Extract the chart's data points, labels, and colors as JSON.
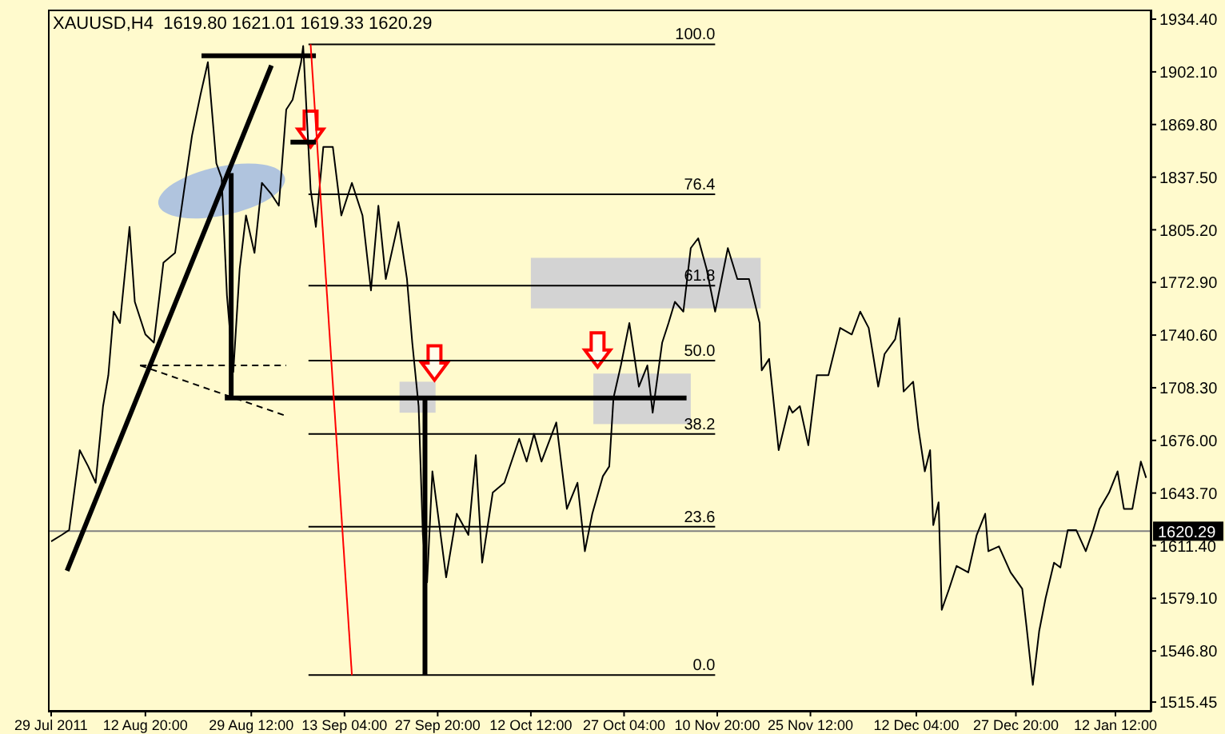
{
  "chart_data": {
    "type": "line",
    "title": "XAUUSD,H4  1619.80 1621.01 1619.33 1620.29",
    "xlim": [
      "2011-07-28T12:00",
      "2012-01-18T04:00"
    ],
    "xticks": [
      {
        "value": "2011-07-29T00:00",
        "label": "29 Jul 2011"
      },
      {
        "value": "2011-08-12T20:00",
        "label": "12 Aug 20:00"
      },
      {
        "value": "2011-08-29T12:00",
        "label": "29 Aug 12:00"
      },
      {
        "value": "2011-09-13T04:00",
        "label": "13 Sep 04:00"
      },
      {
        "value": "2011-09-27T20:00",
        "label": "27 Sep 20:00"
      },
      {
        "value": "2011-10-12T12:00",
        "label": "12 Oct 12:00"
      },
      {
        "value": "2011-10-27T04:00",
        "label": "27 Oct 04:00"
      },
      {
        "value": "2011-11-10T20:00",
        "label": "10 Nov 20:00"
      },
      {
        "value": "2011-11-25T12:00",
        "label": "25 Nov 12:00"
      },
      {
        "value": "2011-12-12T04:00",
        "label": "12 Dec 04:00"
      },
      {
        "value": "2011-12-27T20:00",
        "label": "27 Dec 20:00"
      },
      {
        "value": "2012-01-12T12:00",
        "label": "12 Jan 12:00"
      }
    ],
    "ylim": [
      1509.6,
      1940.3
    ],
    "yticks": [
      {
        "value": 1934.4,
        "label": "1934.40"
      },
      {
        "value": 1902.1,
        "label": "1902.10"
      },
      {
        "value": 1869.8,
        "label": "1869.80"
      },
      {
        "value": 1837.5,
        "label": "1837.50"
      },
      {
        "value": 1805.2,
        "label": "1805.20"
      },
      {
        "value": 1772.9,
        "label": "1772.90"
      },
      {
        "value": 1740.6,
        "label": "1740.60"
      },
      {
        "value": 1708.3,
        "label": "1708.30"
      },
      {
        "value": 1676,
        "label": "1676.00"
      },
      {
        "value": 1643.7,
        "label": "1643.70"
      },
      {
        "value": 1611.4,
        "label": "1611.40"
      },
      {
        "value": 1579.1,
        "label": "1579.10"
      },
      {
        "value": 1546.8,
        "label": "1546.80"
      },
      {
        "value": 1515.45,
        "label": "1515.45"
      }
    ],
    "ref_lines": [
      {
        "axis": "y",
        "value": 1620.29,
        "label": "1620.29",
        "color": "#808080"
      }
    ],
    "marker": "none",
    "series": [
      {
        "color": "#000000",
        "x": [
          "2011-07-29T00:00",
          "2011-07-30T16:00",
          "2011-07-31T20:00",
          "2011-08-02T12:00",
          "2011-08-03T20:00",
          "2011-08-05T00:00",
          "2011-08-06T04:00",
          "2011-08-07T00:00",
          "2011-08-07T20:00",
          "2011-08-08T20:00",
          "2011-08-10T08:00",
          "2011-08-11T04:00",
          "2011-08-12T20:00",
          "2011-08-14T04:00",
          "2011-08-15T16:00",
          "2011-08-17T12:00",
          "2011-08-18T20:00",
          "2011-08-20T04:00",
          "2011-08-21T12:00",
          "2011-08-22T16:00",
          "2011-08-24T00:00",
          "2011-08-24T20:00",
          "2011-08-25T16:00",
          "2011-08-26T16:00",
          "2011-08-27T16:00",
          "2011-08-28T16:00",
          "2011-08-30T00:00",
          "2011-08-31T04:00",
          "2011-09-01T16:00",
          "2011-09-02T20:00",
          "2011-09-04T00:00",
          "2011-09-05T00:00",
          "2011-09-06T08:00",
          "2011-09-06T16:00",
          "2011-09-07T20:00",
          "2011-09-08T16:00",
          "2011-09-09T20:00",
          "2011-09-11T08:00",
          "2011-09-12T16:00",
          "2011-09-14T08:00",
          "2011-09-16T00:00",
          "2011-09-17T08:00",
          "2011-09-18T12:00",
          "2011-09-19T16:00",
          "2011-09-21T16:00",
          "2011-09-23T00:00",
          "2011-09-23T20:00",
          "2011-09-24T20:00",
          "2011-09-25T12:00",
          "2011-09-26T04:00",
          "2011-09-27T00:00",
          "2011-09-29T04:00",
          "2011-09-30T20:00",
          "2011-10-02T16:00",
          "2011-10-03T20:00",
          "2011-10-04T20:00",
          "2011-10-06T12:00",
          "2011-10-08T08:00",
          "2011-10-10T16:00",
          "2011-10-11T20:00",
          "2011-10-13T00:00",
          "2011-10-14T04:00",
          "2011-10-16T12:00",
          "2011-10-18T04:00",
          "2011-10-19T20:00",
          "2011-10-21T00:00",
          "2011-10-22T04:00",
          "2011-10-23T20:00",
          "2011-10-24T20:00",
          "2011-10-25T12:00",
          "2011-10-26T16:00",
          "2011-10-28T00:00",
          "2011-10-29T12:00",
          "2011-10-30T20:00",
          "2011-10-31T16:00",
          "2011-11-02T04:00",
          "2011-11-03T04:00",
          "2011-11-04T04:00",
          "2011-11-05T12:00",
          "2011-11-06T16:00",
          "2011-11-07T20:00",
          "2011-11-09T04:00",
          "2011-11-10T12:00",
          "2011-11-12T12:00",
          "2011-11-14T00:00",
          "2011-11-15T20:00",
          "2011-11-17T12:00",
          "2011-11-17T20:00",
          "2011-11-19T00:00",
          "2011-11-20T12:00",
          "2011-11-22T04:00",
          "2011-11-22T16:00",
          "2011-11-23T20:00",
          "2011-11-25T04:00",
          "2011-11-26T12:00",
          "2011-11-28T08:00",
          "2011-11-30T04:00",
          "2011-12-02T00:00",
          "2011-12-03T08:00",
          "2011-12-04T16:00",
          "2011-12-06T04:00",
          "2011-12-07T04:00",
          "2011-12-08T20:00",
          "2011-12-09T12:00",
          "2011-12-10T04:00",
          "2011-12-11T16:00",
          "2011-12-12T12:00",
          "2011-12-13T12:00",
          "2011-12-14T08:00",
          "2011-12-14T20:00",
          "2011-12-15T16:00",
          "2011-12-16T04:00",
          "2011-12-17T08:00",
          "2011-12-18T12:00",
          "2011-12-20T08:00",
          "2011-12-21T16:00",
          "2011-12-23T00:00",
          "2011-12-23T12:00",
          "2011-12-25T04:00",
          "2011-12-27T00:00",
          "2011-12-28T20:00",
          "2011-12-29T12:00",
          "2011-12-30T12:00",
          "2011-12-31T12:00",
          "2012-01-01T12:00",
          "2012-01-02T20:00",
          "2012-01-03T20:00",
          "2012-01-05T00:00",
          "2012-01-06T08:00",
          "2012-01-07T20:00",
          "2012-01-09T00:00",
          "2012-01-10T00:00",
          "2012-01-11T12:00",
          "2012-01-12T20:00",
          "2012-01-13T20:00",
          "2012-01-15T04:00",
          "2012-01-16T12:00",
          "2012-01-17T08:00"
        ],
        "values": [
          1614,
          1618,
          1621,
          1670,
          1660,
          1650,
          1697,
          1716,
          1755,
          1748,
          1807,
          1761,
          1741,
          1736,
          1785,
          1791,
          1827,
          1863,
          1888,
          1908,
          1846,
          1837,
          1765,
          1718,
          1781,
          1814,
          1791,
          1834,
          1827,
          1820,
          1879,
          1885,
          1908,
          1918,
          1830,
          1807,
          1856,
          1856,
          1814,
          1834,
          1814,
          1768,
          1820,
          1775,
          1810,
          1775,
          1736,
          1697,
          1618,
          1589,
          1657,
          1592,
          1631,
          1618,
          1667,
          1601,
          1644,
          1650,
          1677,
          1663,
          1680,
          1663,
          1687,
          1634,
          1650,
          1608,
          1631,
          1654,
          1660,
          1702,
          1722,
          1748,
          1709,
          1722,
          1693,
          1736,
          1748,
          1761,
          1755,
          1794,
          1800,
          1781,
          1755,
          1794,
          1775,
          1775,
          1748,
          1719,
          1726,
          1670,
          1697,
          1693,
          1697,
          1673,
          1716,
          1716,
          1745,
          1741,
          1755,
          1745,
          1709,
          1729,
          1738,
          1751,
          1706,
          1712,
          1683,
          1657,
          1670,
          1624,
          1638,
          1572,
          1585,
          1599,
          1595,
          1618,
          1631,
          1608,
          1611,
          1595,
          1585,
          1562,
          1526,
          1559,
          1579,
          1601,
          1598,
          1621,
          1621,
          1608,
          1621,
          1634,
          1644,
          1657,
          1634,
          1634,
          1663,
          1653
        ]
      },
      {
        "name": "100.0",
        "color": "#000000",
        "x": [
          "2011-09-07T12:00",
          "2011-11-10T12:00"
        ],
        "values": [
          1919,
          1919
        ]
      },
      {
        "name": "76.4",
        "color": "#000000",
        "x": [
          "2011-09-07T12:00",
          "2011-11-10T12:00"
        ],
        "values": [
          1827,
          1827
        ]
      },
      {
        "name": "61.8",
        "color": "#000000",
        "x": [
          "2011-09-07T12:00",
          "2011-11-10T12:00"
        ],
        "values": [
          1771,
          1771
        ]
      },
      {
        "name": "50.0",
        "color": "#000000",
        "x": [
          "2011-09-07T12:00",
          "2011-11-10T12:00"
        ],
        "values": [
          1725,
          1725
        ]
      },
      {
        "name": "38.2",
        "color": "#000000",
        "x": [
          "2011-09-07T12:00",
          "2011-11-10T12:00"
        ],
        "values": [
          1680,
          1680
        ]
      },
      {
        "name": "23.6",
        "color": "#000000",
        "x": [
          "2011-09-07T12:00",
          "2011-11-10T12:00"
        ],
        "values": [
          1623,
          1623
        ]
      },
      {
        "name": "0.0",
        "color": "#000000",
        "x": [
          "2011-09-07T12:00",
          "2011-11-10T12:00"
        ],
        "values": [
          1532,
          1532
        ]
      },
      {
        "color": "#000000",
        "x": [
          "2011-07-31T12:00",
          "2011-09-01T16:00"
        ],
        "values": [
          1596,
          1906
        ]
      },
      {
        "color": "#000000",
        "x": [
          "2011-08-21T16:00",
          "2011-09-08T16:00"
        ],
        "values": [
          1912,
          1912
        ]
      },
      {
        "color": "#000000",
        "x": [
          "2011-09-04T16:00",
          "2011-09-08T16:00"
        ],
        "values": [
          1859,
          1859
        ]
      },
      {
        "color": "#000000",
        "x": [
          "2011-08-25T08:00",
          "2011-11-06T00:00"
        ],
        "values": [
          1702,
          1702
        ]
      },
      {
        "color": "#000000",
        "x": [
          "2011-08-26T08:00",
          "2011-08-26T08:00"
        ],
        "values": [
          1840,
          1702
        ]
      },
      {
        "color": "#000000",
        "x": [
          "2011-09-25T20:00",
          "2011-09-25T20:00"
        ],
        "values": [
          1702,
          1532
        ]
      },
      {
        "color": "#ff0000",
        "x": [
          "2011-09-07T20:00",
          "2011-09-14T08:00"
        ],
        "values": [
          1919,
          1532
        ]
      },
      {
        "color": "#000000",
        "line_style": "dashed",
        "x": [
          "2011-08-12T00:00",
          "2011-09-04T00:00"
        ],
        "values": [
          1722,
          1722
        ]
      },
      {
        "color": "#000000",
        "line_style": "dashed",
        "x": [
          "2011-08-12T00:00",
          "2011-09-04T00:00"
        ],
        "values": [
          1722,
          1691
        ]
      }
    ]
  }
}
